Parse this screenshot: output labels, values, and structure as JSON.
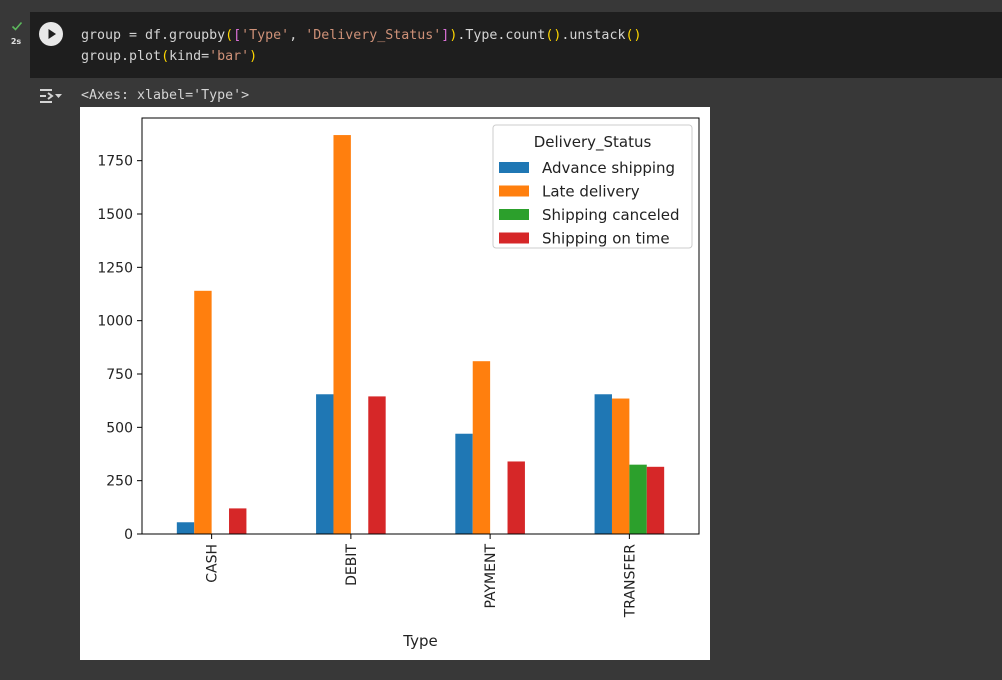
{
  "cell": {
    "exec_time": "2s",
    "code_lines": [
      [
        {
          "t": "group = df.groupby",
          "c": ""
        },
        {
          "t": "(",
          "c": "tok-brk1"
        },
        {
          "t": "[",
          "c": "tok-brk2"
        },
        {
          "t": "'Type'",
          "c": "tok-str"
        },
        {
          "t": ", ",
          "c": ""
        },
        {
          "t": "'Delivery_Status'",
          "c": "tok-str"
        },
        {
          "t": "]",
          "c": "tok-brk2"
        },
        {
          "t": ")",
          "c": "tok-brk1"
        },
        {
          "t": ".Type.count",
          "c": ""
        },
        {
          "t": "()",
          "c": "tok-brk1"
        },
        {
          "t": ".unstack",
          "c": ""
        },
        {
          "t": "()",
          "c": "tok-brk1"
        }
      ],
      [
        {
          "t": "group.plot",
          "c": ""
        },
        {
          "t": "(",
          "c": "tok-brk1"
        },
        {
          "t": "kind=",
          "c": ""
        },
        {
          "t": "'bar'",
          "c": "tok-str"
        },
        {
          "t": ")",
          "c": "tok-brk1"
        }
      ]
    ]
  },
  "output": {
    "text": "<Axes: xlabel='Type'>",
    "icon": "output-menu-icon"
  },
  "colors": {
    "advance": "#1f77b4",
    "late": "#ff7f0e",
    "canceled": "#2ca02c",
    "ontime": "#d62728"
  },
  "chart_data": {
    "type": "bar",
    "categories": [
      "CASH",
      "DEBIT",
      "PAYMENT",
      "TRANSFER"
    ],
    "series": [
      {
        "name": "Advance shipping",
        "color": "#1f77b4",
        "values": [
          55,
          655,
          470,
          655
        ]
      },
      {
        "name": "Late delivery",
        "color": "#ff7f0e",
        "values": [
          1140,
          1870,
          810,
          635
        ]
      },
      {
        "name": "Shipping canceled",
        "color": "#2ca02c",
        "values": [
          0,
          0,
          0,
          325
        ]
      },
      {
        "name": "Shipping on time",
        "color": "#d62728",
        "values": [
          120,
          645,
          340,
          315
        ]
      }
    ],
    "xlabel": "Type",
    "ylabel": "",
    "ylim": [
      0,
      1950
    ],
    "yticks": [
      0,
      250,
      500,
      750,
      1000,
      1250,
      1500,
      1750
    ],
    "legend_title": "Delivery_Status",
    "legend_position": "top-right",
    "grid": false
  }
}
